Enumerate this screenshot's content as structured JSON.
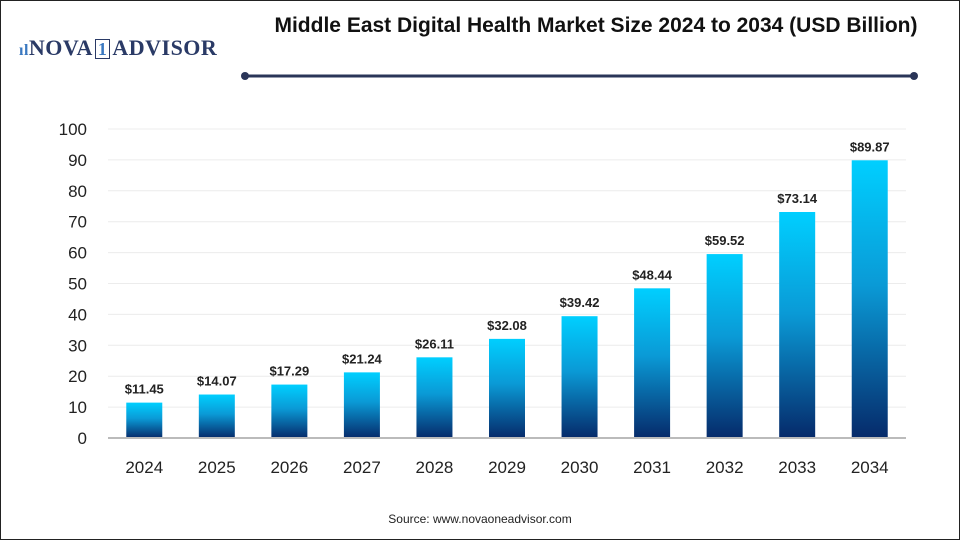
{
  "logo": {
    "text_left": "NOVA",
    "text_one": "1",
    "text_right": "ADVISOR"
  },
  "chart_data": {
    "type": "bar",
    "title": "Middle East Digital Health Market Size 2024 to 2034 (USD Billion)",
    "categories": [
      "2024",
      "2025",
      "2026",
      "2027",
      "2028",
      "2029",
      "2030",
      "2031",
      "2032",
      "2033",
      "2034"
    ],
    "values": [
      11.45,
      14.07,
      17.29,
      21.24,
      26.11,
      32.08,
      39.42,
      48.44,
      59.52,
      73.14,
      89.87
    ],
    "data_labels": [
      "$11.45",
      "$14.07",
      "$17.29",
      "$21.24",
      "$26.11",
      "$32.08",
      "$39.42",
      "$48.44",
      "$59.52",
      "$73.14",
      "$89.87"
    ],
    "yticks": [
      0,
      10,
      20,
      30,
      40,
      50,
      60,
      70,
      80,
      90,
      100
    ],
    "ylim": [
      0,
      100
    ],
    "xlabel": "",
    "ylabel": "",
    "grid": true,
    "colors": {
      "bar_top": "#00cfff",
      "bar_bottom": "#062a6a",
      "title_rule": "#2a3558"
    }
  },
  "source": "Source: www.novaoneadvisor.com"
}
